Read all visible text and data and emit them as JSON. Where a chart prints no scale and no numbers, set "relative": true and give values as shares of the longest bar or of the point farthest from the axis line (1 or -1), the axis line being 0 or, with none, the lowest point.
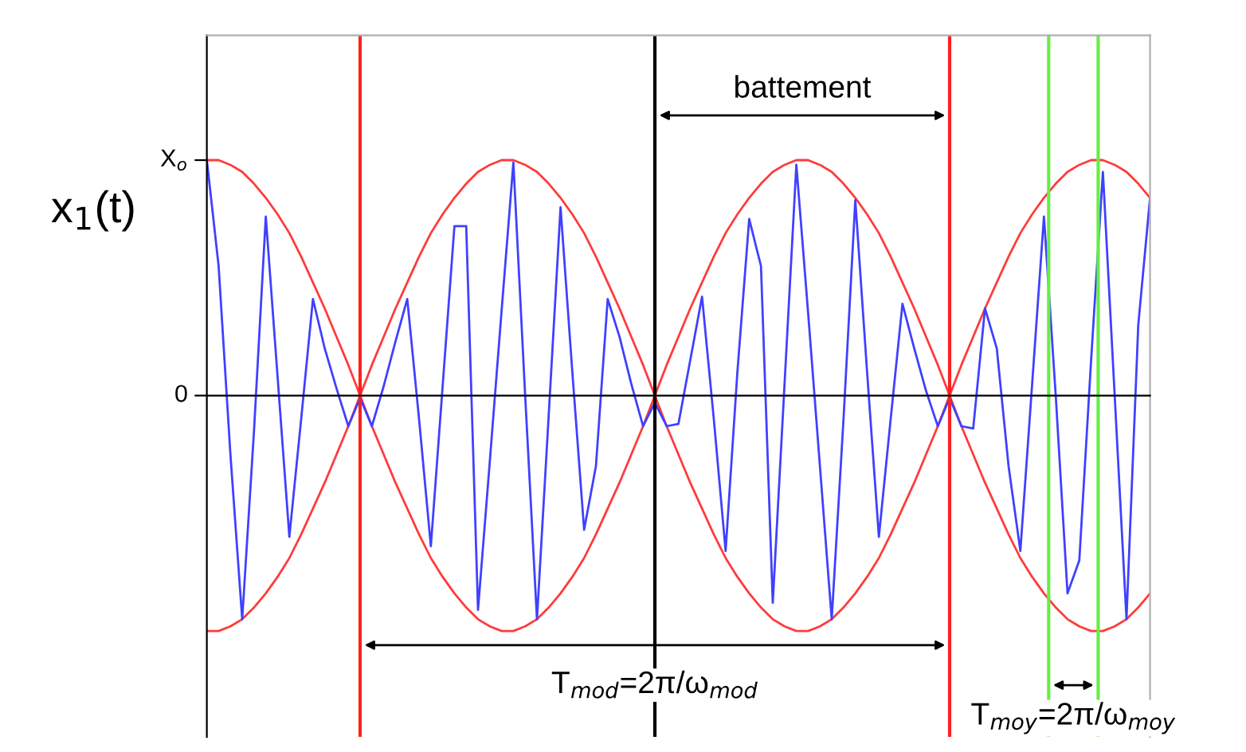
{
  "chart_data": {
    "type": "line",
    "relative": true,
    "ylabel": "x$_{1}$(t)",
    "categories": [
      null,
      null,
      null,
      null,
      null,
      null,
      null,
      null,
      null,
      null,
      null,
      null,
      null,
      null,
      null,
      null,
      null,
      null,
      null,
      null,
      null,
      null,
      null,
      null,
      null,
      null,
      null,
      null,
      null,
      null,
      null,
      null,
      null,
      null,
      null,
      null,
      null,
      null,
      null,
      null,
      null,
      null,
      null,
      null,
      null,
      null,
      null,
      null,
      null,
      null,
      null,
      null,
      null,
      null,
      null,
      null,
      null,
      null,
      null,
      null,
      null,
      null,
      null,
      null,
      null,
      null,
      null,
      null,
      null,
      null,
      null,
      null,
      null,
      null,
      null,
      null,
      null,
      null,
      null,
      null,
      null
    ],
    "grid": false,
    "legend": false,
    "marker": "none",
    "line_style": "solid",
    "series": [
      {
        "color": "#ff3b3b",
        "values": [
          1.0,
          1.0,
          0.98,
          0.95,
          0.9,
          0.84,
          0.77,
          0.69,
          0.59,
          0.48,
          0.37,
          0.25,
          0.13,
          0,
          0.13,
          0.25,
          0.37,
          0.48,
          0.59,
          0.69,
          0.77,
          0.84,
          0.9,
          0.95,
          0.98,
          1.0,
          1.0,
          0.98,
          0.95,
          0.9,
          0.84,
          0.77,
          0.69,
          0.59,
          0.48,
          0.37,
          0.25,
          0.13,
          0,
          0.13,
          0.25,
          0.37,
          0.48,
          0.59,
          0.69,
          0.77,
          0.84,
          0.9,
          0.95,
          0.98,
          1.0,
          1.0,
          0.98,
          0.95,
          0.9,
          0.84,
          0.77,
          0.69,
          0.59,
          0.48,
          0.37,
          0.25,
          0.13,
          0,
          0.13,
          0.25,
          0.37,
          0.48,
          0.59,
          0.69,
          0.77,
          0.84,
          0.9,
          0.95,
          0.98,
          1.0,
          1.0,
          0.98,
          0.95,
          0.9,
          0.84
        ]
      },
      {
        "color": "#ff3b3b",
        "values": [
          -1.0,
          -1.0,
          -0.98,
          -0.95,
          -0.9,
          -0.84,
          -0.77,
          -0.69,
          -0.59,
          -0.48,
          -0.37,
          -0.25,
          -0.13,
          0,
          -0.13,
          -0.25,
          -0.37,
          -0.48,
          -0.59,
          -0.69,
          -0.77,
          -0.84,
          -0.9,
          -0.95,
          -0.98,
          -1.0,
          -1.0,
          -0.98,
          -0.95,
          -0.9,
          -0.84,
          -0.77,
          -0.69,
          -0.59,
          -0.48,
          -0.37,
          -0.25,
          -0.13,
          0,
          -0.13,
          -0.25,
          -0.37,
          -0.48,
          -0.59,
          -0.69,
          -0.77,
          -0.84,
          -0.9,
          -0.95,
          -0.98,
          -1.0,
          -1.0,
          -0.98,
          -0.95,
          -0.9,
          -0.84,
          -0.77,
          -0.69,
          -0.59,
          -0.48,
          -0.37,
          -0.25,
          -0.13,
          0,
          -0.13,
          -0.25,
          -0.37,
          -0.48,
          -0.59,
          -0.69,
          -0.77,
          -0.84,
          -0.9,
          -0.95,
          -0.98,
          -1.0,
          -1.0,
          -0.98,
          -0.95,
          -0.9,
          -0.84
        ]
      },
      {
        "color": "#4040ff",
        "values": [
          1.0,
          0.55,
          -0.25,
          -0.95,
          -0.15,
          0.76,
          0.08,
          -0.6,
          -0.1,
          0.41,
          0.2,
          0.03,
          -0.13,
          -0.01,
          -0.13,
          0.04,
          0.23,
          0.41,
          -0.1,
          -0.64,
          0.04,
          0.72,
          0.72,
          -0.91,
          -0.28,
          0.36,
          0.99,
          0.0,
          -0.95,
          -0.08,
          0.8,
          0.1,
          -0.57,
          -0.3,
          0.41,
          0.25,
          0.05,
          -0.13,
          -0.03,
          -0.13,
          -0.12,
          0.15,
          0.42,
          -0.1,
          -0.66,
          0.1,
          0.75,
          0.55,
          -0.88,
          0.05,
          0.98,
          0.35,
          -0.3,
          -0.95,
          -0.1,
          0.83,
          0.1,
          -0.6,
          -0.1,
          0.39,
          0.2,
          0.02,
          -0.13,
          -0.01,
          -0.13,
          -0.14,
          0.37,
          0.2,
          -0.3,
          -0.66,
          0.05,
          0.76,
          0.0,
          -0.84,
          -0.7,
          0.15,
          0.95,
          0.0,
          -0.95,
          0.3,
          0.84
        ]
      }
    ],
    "annotations": [
      "battement",
      "T$_{mod}$=2π/ω$_{mod}$",
      "T$_{moy}$=2π/ω$_{moy}$",
      "X$_{o}$",
      "0"
    ]
  }
}
